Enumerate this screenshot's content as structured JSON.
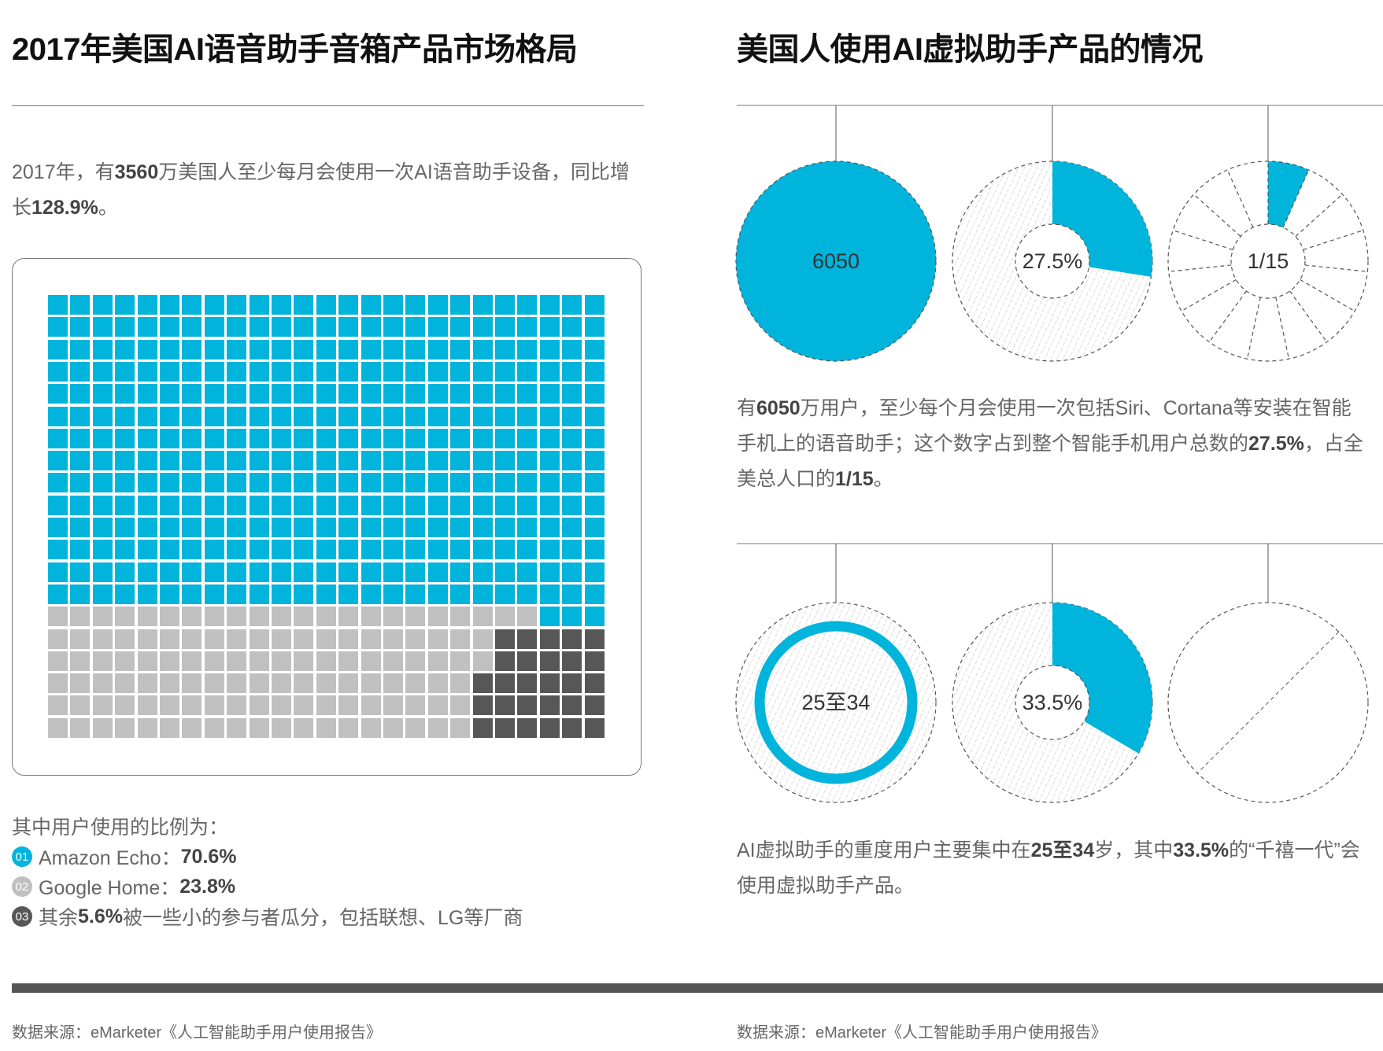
{
  "colors": {
    "blue": "#00b4dc",
    "gray": "#c0c0c0",
    "dark": "#575757",
    "text": "#555555"
  },
  "left": {
    "title": "2017年美国AI语音助手音箱产品市场格局",
    "intro": [
      {
        "t": "2017年，有",
        "b": false
      },
      {
        "t": "3560",
        "b": true
      },
      {
        "t": "万美国人至少每月会使用一次AI语音助手设备，同比增长",
        "b": false
      },
      {
        "t": "128.9%",
        "b": true
      },
      {
        "t": "。",
        "b": false
      }
    ],
    "legend_heading": "其中用户使用的比例为：",
    "legend": [
      {
        "num": "01",
        "label": "Amazon Echo：",
        "value": "70.6%",
        "tail": "",
        "color": "#00b4dc"
      },
      {
        "num": "02",
        "label": "Google Home：",
        "value": "23.8%",
        "tail": "",
        "color": "#c0c0c0"
      },
      {
        "num": "03",
        "label": "其余",
        "value": "5.6%",
        "tail": "被一些小的参与者瓜分，包括联想、LG等厂商",
        "color": "#575757"
      }
    ],
    "source": "数据来源：eMarketer《人工智能助手用户使用报告》"
  },
  "chart_data": {
    "type": "waffle",
    "rows": 20,
    "cols": 25,
    "series": [
      {
        "name": "Amazon Echo",
        "value": 70.6,
        "cells": 353
      },
      {
        "name": "Google Home",
        "value": 23.8,
        "cells": 119
      },
      {
        "name": "其他",
        "value": 5.6,
        "cells": 28
      }
    ]
  },
  "right": {
    "title": "美国人使用AI虚拟助手产品的情况",
    "row1": {
      "users_label": "6050",
      "share_label": "27.5%",
      "share_value": 27.5,
      "pop_label": "1/15",
      "pop_denominator": 15
    },
    "para1": [
      {
        "t": "有",
        "b": false
      },
      {
        "t": "6050",
        "b": true
      },
      {
        "t": "万用户，至少每个月会使用一次包括Siri、Cortana等安装在智能手机上的语音助手；这个数字占到整个智能手机用户总数的",
        "b": false
      },
      {
        "t": "27.5%",
        "b": true
      },
      {
        "t": "，占全美总人口的",
        "b": false
      },
      {
        "t": "1/15",
        "b": true
      },
      {
        "t": "。",
        "b": false
      }
    ],
    "row2": {
      "age_label": "25至34",
      "share_label": "33.5%",
      "share_value": 33.5
    },
    "para2": [
      {
        "t": "AI虚拟助手的重度用户主要集中在",
        "b": false
      },
      {
        "t": "25至34",
        "b": true
      },
      {
        "t": "岁，其中",
        "b": false
      },
      {
        "t": "33.5%",
        "b": true
      },
      {
        "t": "的“千禧一代”会使用虚拟助手产品。",
        "b": false
      }
    ],
    "source": "数据来源：eMarketer《人工智能助手用户使用报告》"
  }
}
